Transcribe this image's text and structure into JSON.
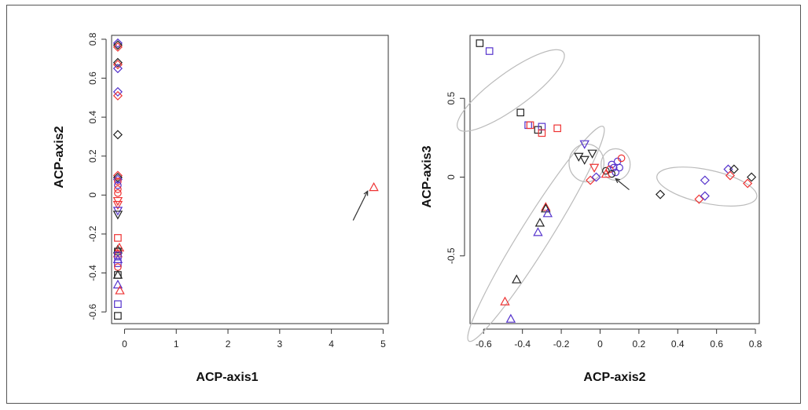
{
  "colors": {
    "black": "#222222",
    "red": "#ee3333",
    "blue": "#5533cc",
    "ellipse": "#bbbbbb",
    "box": "#333333"
  },
  "chart_data": [
    {
      "type": "scatter",
      "xlabel": "ACP-axis1",
      "ylabel": "ACP-axis2",
      "xlim": [
        -0.25,
        5.1
      ],
      "ylim": [
        -0.66,
        0.82
      ],
      "xticks": [
        0,
        1,
        2,
        3,
        4,
        5
      ],
      "yticks": [
        -0.6,
        -0.4,
        -0.2,
        0.0,
        0.2,
        0.4,
        0.6,
        0.8
      ],
      "points": [
        {
          "x": -0.13,
          "y": 0.78,
          "shape": "diamond",
          "color": "blue"
        },
        {
          "x": -0.13,
          "y": 0.77,
          "shape": "diamond",
          "color": "black"
        },
        {
          "x": -0.13,
          "y": 0.76,
          "shape": "diamond",
          "color": "red"
        },
        {
          "x": -0.13,
          "y": 0.68,
          "shape": "diamond",
          "color": "black"
        },
        {
          "x": -0.13,
          "y": 0.67,
          "shape": "diamond",
          "color": "red"
        },
        {
          "x": -0.13,
          "y": 0.65,
          "shape": "diamond",
          "color": "blue"
        },
        {
          "x": -0.13,
          "y": 0.53,
          "shape": "diamond",
          "color": "blue"
        },
        {
          "x": -0.13,
          "y": 0.51,
          "shape": "diamond",
          "color": "red"
        },
        {
          "x": -0.13,
          "y": 0.31,
          "shape": "diamond",
          "color": "black"
        },
        {
          "x": -0.13,
          "y": 0.1,
          "shape": "diamond",
          "color": "red"
        },
        {
          "x": -0.13,
          "y": 0.09,
          "shape": "diamond",
          "color": "black"
        },
        {
          "x": -0.13,
          "y": 0.08,
          "shape": "diamond",
          "color": "blue"
        },
        {
          "x": -0.13,
          "y": 0.07,
          "shape": "circle",
          "color": "red"
        },
        {
          "x": -0.13,
          "y": 0.05,
          "shape": "circle",
          "color": "blue"
        },
        {
          "x": -0.13,
          "y": 0.03,
          "shape": "circle",
          "color": "red"
        },
        {
          "x": -0.13,
          "y": 0.01,
          "shape": "circle",
          "color": "red"
        },
        {
          "x": -0.13,
          "y": -0.03,
          "shape": "triangle-down",
          "color": "red"
        },
        {
          "x": -0.13,
          "y": -0.05,
          "shape": "triangle-down",
          "color": "red"
        },
        {
          "x": -0.13,
          "y": -0.08,
          "shape": "triangle-down",
          "color": "blue"
        },
        {
          "x": -0.13,
          "y": -0.1,
          "shape": "triangle-down",
          "color": "black"
        },
        {
          "x": -0.13,
          "y": -0.22,
          "shape": "square",
          "color": "red"
        },
        {
          "x": -0.13,
          "y": -0.28,
          "shape": "triangle",
          "color": "black"
        },
        {
          "x": -0.1,
          "y": -0.27,
          "shape": "triangle",
          "color": "red"
        },
        {
          "x": -0.13,
          "y": -0.29,
          "shape": "square",
          "color": "black"
        },
        {
          "x": -0.13,
          "y": -0.3,
          "shape": "triangle",
          "color": "red"
        },
        {
          "x": -0.13,
          "y": -0.31,
          "shape": "square",
          "color": "blue"
        },
        {
          "x": -0.13,
          "y": -0.33,
          "shape": "triangle",
          "color": "blue"
        },
        {
          "x": -0.13,
          "y": -0.35,
          "shape": "square",
          "color": "blue"
        },
        {
          "x": -0.13,
          "y": -0.37,
          "shape": "circle",
          "color": "red"
        },
        {
          "x": -0.13,
          "y": -0.41,
          "shape": "square",
          "color": "black"
        },
        {
          "x": -0.13,
          "y": -0.41,
          "shape": "triangle",
          "color": "black"
        },
        {
          "x": -0.13,
          "y": -0.46,
          "shape": "triangle",
          "color": "blue"
        },
        {
          "x": -0.09,
          "y": -0.49,
          "shape": "triangle",
          "color": "red"
        },
        {
          "x": -0.13,
          "y": -0.56,
          "shape": "square",
          "color": "blue"
        },
        {
          "x": -0.13,
          "y": -0.62,
          "shape": "square",
          "color": "black"
        },
        {
          "x": 4.82,
          "y": 0.04,
          "shape": "triangle",
          "color": "red"
        }
      ],
      "annotations": [
        {
          "type": "arrow",
          "from": [
            4.42,
            -0.13
          ],
          "to": [
            4.7,
            0.02
          ]
        }
      ]
    },
    {
      "type": "scatter",
      "xlabel": "ACP-axis2",
      "ylabel": "ACP-axis3",
      "xlim": [
        -0.67,
        0.82
      ],
      "ylim": [
        -0.93,
        0.9
      ],
      "xticks": [
        -0.6,
        -0.4,
        -0.2,
        0.0,
        0.2,
        0.4,
        0.6,
        0.8
      ],
      "yticks": [
        -0.5,
        0.0,
        0.5
      ],
      "points": [
        {
          "x": -0.62,
          "y": 0.85,
          "shape": "square",
          "color": "black"
        },
        {
          "x": -0.57,
          "y": 0.8,
          "shape": "square",
          "color": "blue"
        },
        {
          "x": -0.41,
          "y": 0.41,
          "shape": "square",
          "color": "black"
        },
        {
          "x": -0.37,
          "y": 0.33,
          "shape": "square",
          "color": "blue"
        },
        {
          "x": -0.36,
          "y": 0.33,
          "shape": "square",
          "color": "red"
        },
        {
          "x": -0.32,
          "y": 0.3,
          "shape": "square",
          "color": "black"
        },
        {
          "x": -0.3,
          "y": 0.32,
          "shape": "square",
          "color": "blue"
        },
        {
          "x": -0.3,
          "y": 0.28,
          "shape": "square",
          "color": "red"
        },
        {
          "x": -0.22,
          "y": 0.31,
          "shape": "square",
          "color": "red"
        },
        {
          "x": -0.08,
          "y": 0.21,
          "shape": "triangle-down",
          "color": "blue"
        },
        {
          "x": -0.11,
          "y": 0.13,
          "shape": "triangle-down",
          "color": "black"
        },
        {
          "x": -0.08,
          "y": 0.11,
          "shape": "triangle-down",
          "color": "black"
        },
        {
          "x": -0.04,
          "y": 0.15,
          "shape": "triangle-down",
          "color": "black"
        },
        {
          "x": -0.03,
          "y": 0.06,
          "shape": "triangle-down",
          "color": "red"
        },
        {
          "x": -0.05,
          "y": -0.02,
          "shape": "diamond",
          "color": "red"
        },
        {
          "x": -0.02,
          "y": 0.0,
          "shape": "diamond",
          "color": "blue"
        },
        {
          "x": 0.03,
          "y": 0.04,
          "shape": "circle",
          "color": "black"
        },
        {
          "x": 0.06,
          "y": 0.08,
          "shape": "circle",
          "color": "blue"
        },
        {
          "x": 0.05,
          "y": 0.05,
          "shape": "circle",
          "color": "red"
        },
        {
          "x": 0.07,
          "y": 0.06,
          "shape": "circle",
          "color": "blue"
        },
        {
          "x": 0.09,
          "y": 0.1,
          "shape": "circle",
          "color": "blue"
        },
        {
          "x": 0.1,
          "y": 0.06,
          "shape": "circle",
          "color": "blue"
        },
        {
          "x": 0.11,
          "y": 0.12,
          "shape": "circle",
          "color": "red"
        },
        {
          "x": 0.08,
          "y": 0.03,
          "shape": "circle",
          "color": "blue"
        },
        {
          "x": 0.06,
          "y": 0.02,
          "shape": "circle",
          "color": "black"
        },
        {
          "x": 0.03,
          "y": 0.02,
          "shape": "triangle",
          "color": "red"
        },
        {
          "x": -0.28,
          "y": -0.19,
          "shape": "triangle",
          "color": "red"
        },
        {
          "x": -0.28,
          "y": -0.2,
          "shape": "triangle",
          "color": "black"
        },
        {
          "x": -0.27,
          "y": -0.23,
          "shape": "triangle",
          "color": "blue"
        },
        {
          "x": -0.31,
          "y": -0.29,
          "shape": "triangle",
          "color": "black"
        },
        {
          "x": -0.32,
          "y": -0.35,
          "shape": "triangle",
          "color": "blue"
        },
        {
          "x": -0.43,
          "y": -0.65,
          "shape": "triangle",
          "color": "black"
        },
        {
          "x": -0.49,
          "y": -0.79,
          "shape": "triangle",
          "color": "red"
        },
        {
          "x": -0.46,
          "y": -0.9,
          "shape": "triangle",
          "color": "blue"
        },
        {
          "x": 0.31,
          "y": -0.11,
          "shape": "diamond",
          "color": "black"
        },
        {
          "x": 0.51,
          "y": -0.14,
          "shape": "diamond",
          "color": "red"
        },
        {
          "x": 0.54,
          "y": -0.12,
          "shape": "diamond",
          "color": "blue"
        },
        {
          "x": 0.54,
          "y": -0.02,
          "shape": "diamond",
          "color": "blue"
        },
        {
          "x": 0.66,
          "y": 0.05,
          "shape": "diamond",
          "color": "blue"
        },
        {
          "x": 0.67,
          "y": 0.01,
          "shape": "diamond",
          "color": "red"
        },
        {
          "x": 0.69,
          "y": 0.05,
          "shape": "diamond",
          "color": "black"
        },
        {
          "x": 0.76,
          "y": -0.04,
          "shape": "diamond",
          "color": "red"
        },
        {
          "x": 0.78,
          "y": 0.0,
          "shape": "diamond",
          "color": "black"
        }
      ],
      "ellipses": [
        {
          "cx": -0.46,
          "cy": 0.55,
          "rx": 0.37,
          "ry": 0.1,
          "angle": -36
        },
        {
          "cx": -0.07,
          "cy": 0.09,
          "rx": 0.09,
          "ry": 0.12,
          "angle": 0
        },
        {
          "cx": 0.08,
          "cy": 0.08,
          "rx": 0.075,
          "ry": 0.1,
          "angle": 0
        },
        {
          "cx": 0.55,
          "cy": -0.06,
          "rx": 0.29,
          "ry": 0.095,
          "angle": 12
        },
        {
          "cx": -0.33,
          "cy": -0.36,
          "rx": 0.72,
          "ry": 0.085,
          "angle": -58
        }
      ],
      "annotations": [
        {
          "type": "arrow",
          "from": [
            0.15,
            -0.08
          ],
          "to": [
            0.08,
            -0.01
          ]
        }
      ]
    }
  ]
}
